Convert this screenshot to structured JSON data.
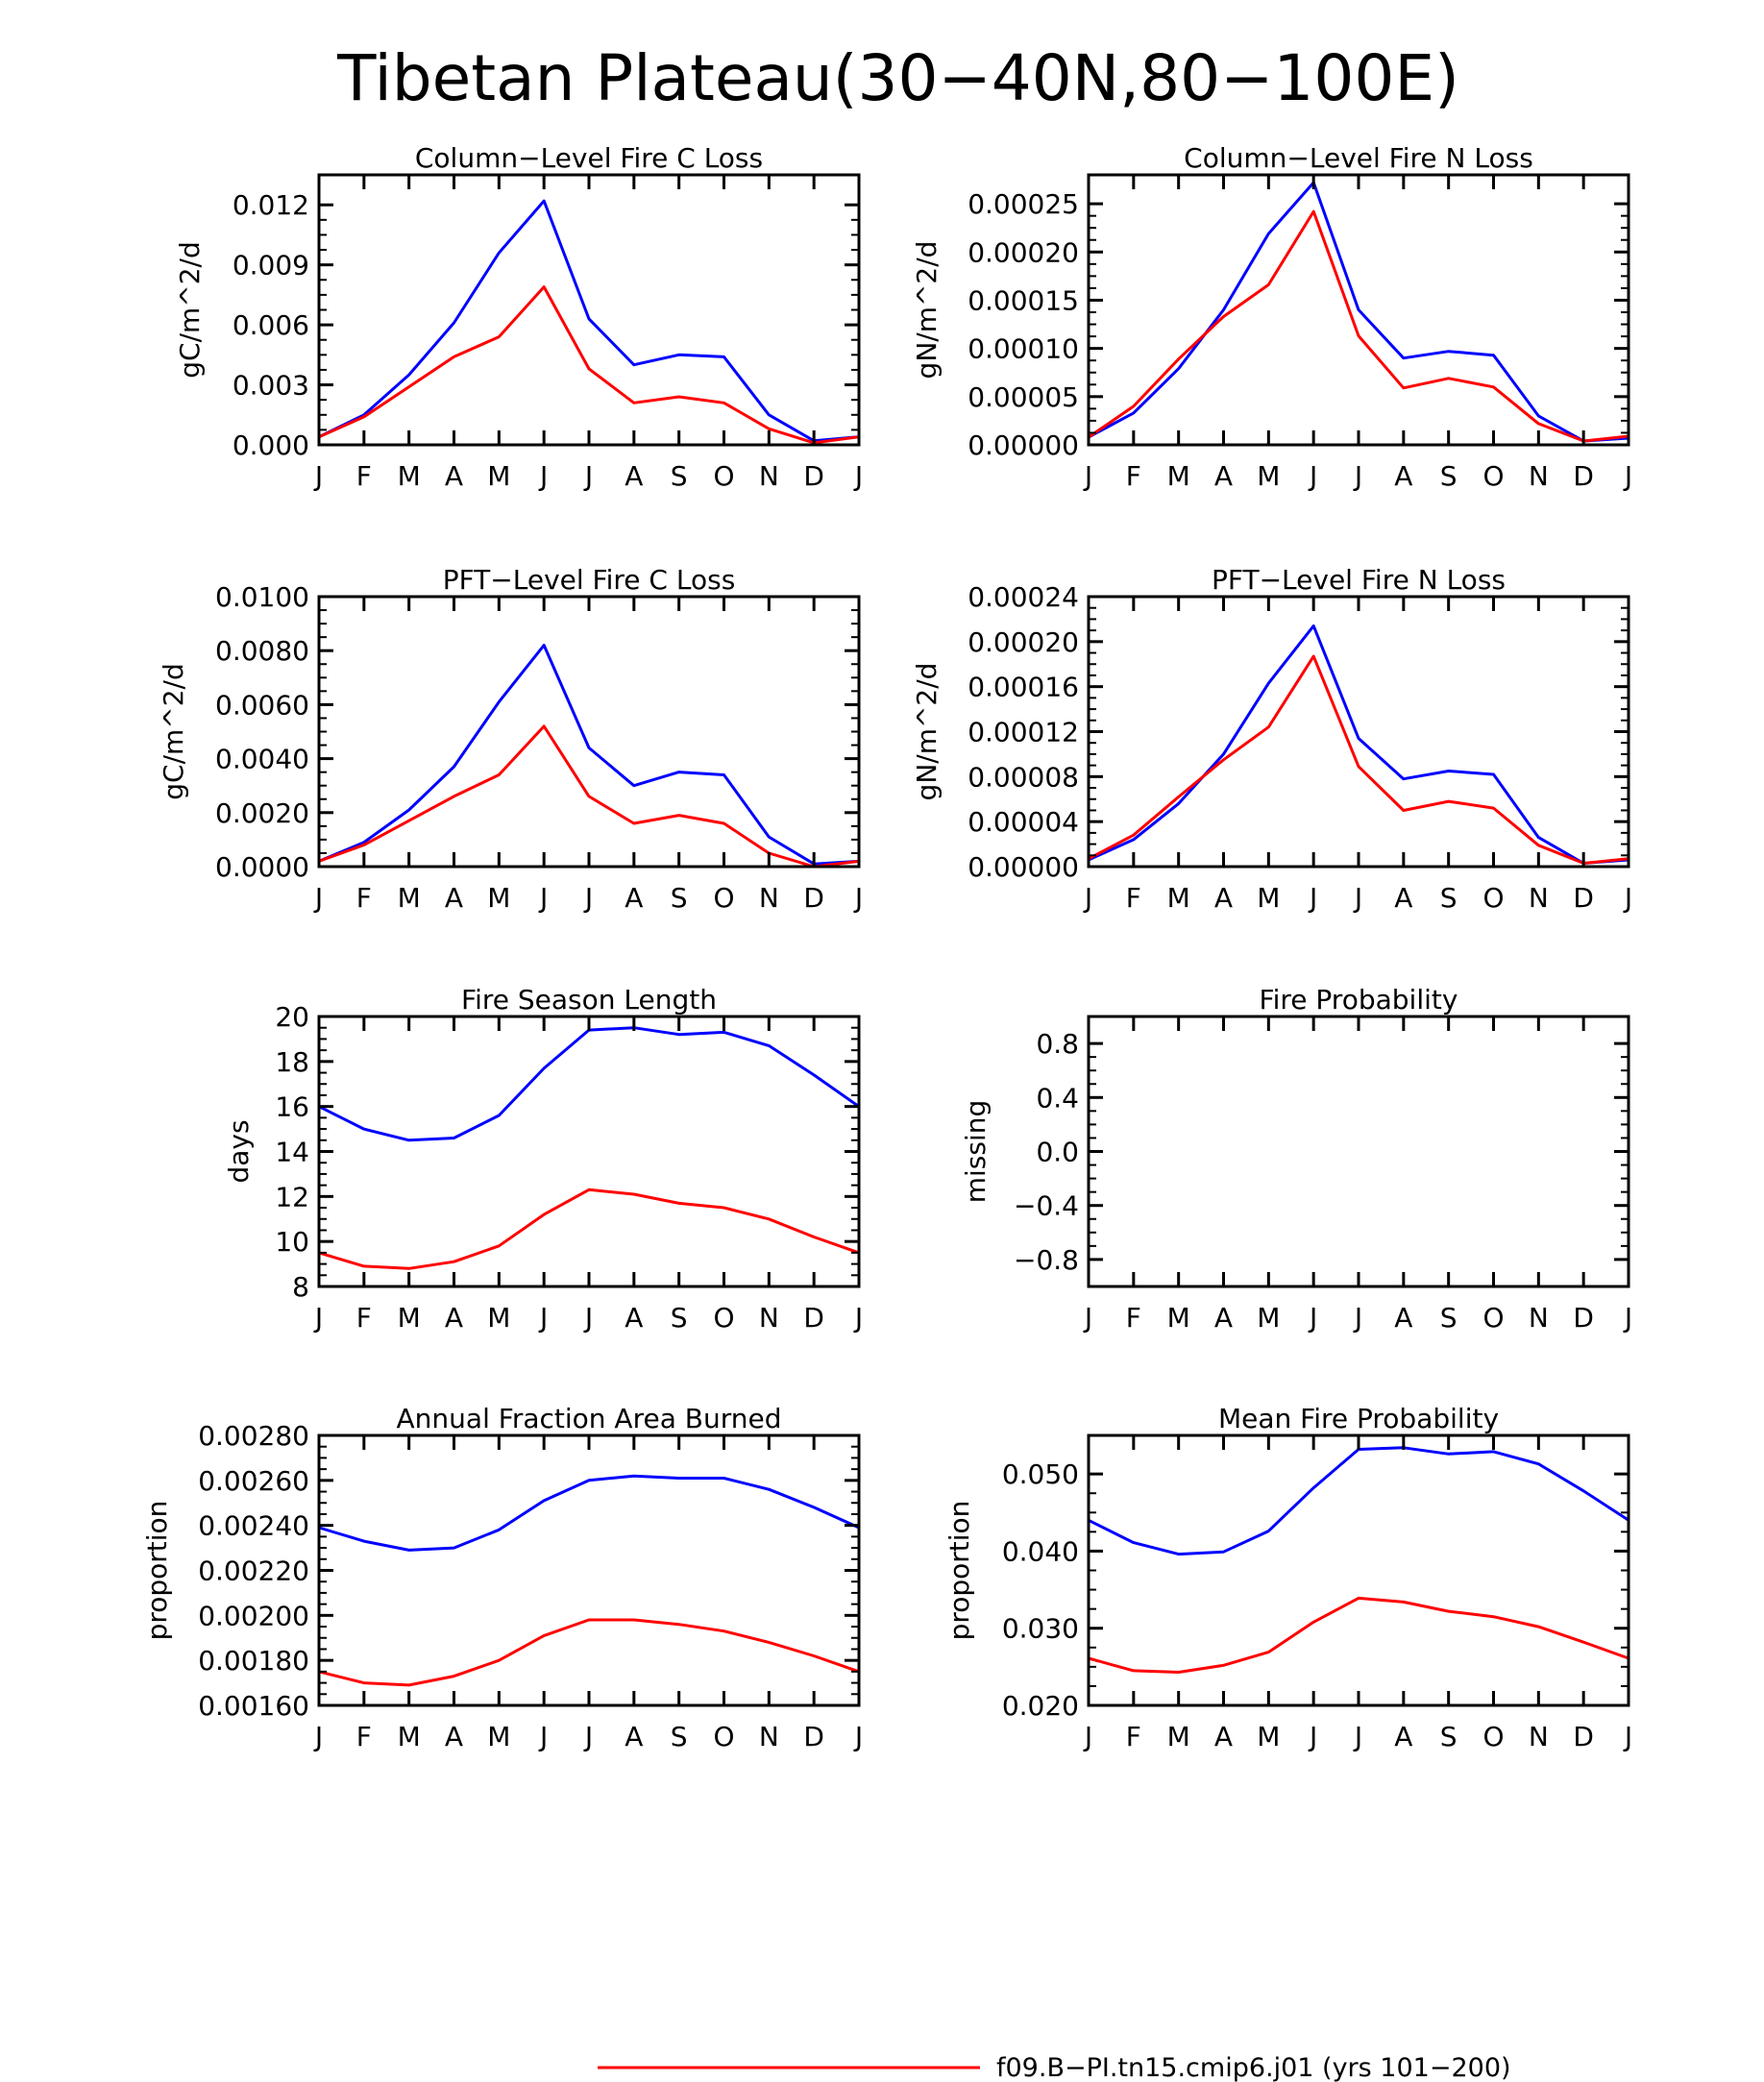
{
  "figure_title": "Tibetan Plateau(30−40N,80−100E)",
  "legend": {
    "red_label": "f09.B−PI.tn15.cmip6.j01 (yrs 101−200)"
  },
  "colors": {
    "series_a": "#ff0000",
    "series_b": "#0000ff",
    "axis": "#000000"
  },
  "chart_data": [
    {
      "type": "line",
      "title": "Column−Level Fire C Loss",
      "ylabel": "gC/m^2/d",
      "categories": [
        "J",
        "F",
        "M",
        "A",
        "M",
        "J",
        "J",
        "A",
        "S",
        "O",
        "N",
        "D",
        "J"
      ],
      "ylim": [
        0,
        0.0135
      ],
      "yticks": [
        "0.000",
        "0.003",
        "0.006",
        "0.009",
        "0.012"
      ],
      "ytick_values": [
        0,
        0.003,
        0.006,
        0.009,
        0.012
      ],
      "series": [
        {
          "color": "#0000ff",
          "values": [
            0.0004,
            0.0015,
            0.0035,
            0.0061,
            0.0096,
            0.0122,
            0.0063,
            0.004,
            0.0045,
            0.0044,
            0.0015,
            0.0002,
            0.0004
          ]
        },
        {
          "color": "#ff0000",
          "values": [
            0.0004,
            0.0014,
            0.0029,
            0.0044,
            0.0054,
            0.0079,
            0.0038,
            0.0021,
            0.0024,
            0.0021,
            0.0008,
            0.0001,
            0.0004
          ]
        }
      ]
    },
    {
      "type": "line",
      "title": "Column−Level Fire N Loss",
      "ylabel": "gN/m^2/d",
      "categories": [
        "J",
        "F",
        "M",
        "A",
        "M",
        "J",
        "J",
        "A",
        "S",
        "O",
        "N",
        "D",
        "J"
      ],
      "ylim": [
        0,
        0.00028
      ],
      "yticks": [
        "0.00000",
        "0.00005",
        "0.00010",
        "0.00015",
        "0.00020",
        "0.00025"
      ],
      "ytick_values": [
        0,
        5e-05,
        0.0001,
        0.00015,
        0.0002,
        0.00025
      ],
      "series": [
        {
          "color": "#0000ff",
          "values": [
            8e-06,
            3.3e-05,
            7.9e-05,
            0.00014,
            0.000219,
            0.000272,
            0.00014,
            9e-05,
            9.7e-05,
            9.3e-05,
            3e-05,
            4e-06,
            7e-06
          ]
        },
        {
          "color": "#ff0000",
          "values": [
            8e-06,
            4e-05,
            8.9e-05,
            0.000133,
            0.000166,
            0.000242,
            0.000113,
            5.9e-05,
            6.9e-05,
            6e-05,
            2.2e-05,
            4e-06,
            9e-06
          ]
        }
      ]
    },
    {
      "type": "line",
      "title": "PFT−Level Fire C Loss",
      "ylabel": "gC/m^2/d",
      "categories": [
        "J",
        "F",
        "M",
        "A",
        "M",
        "J",
        "J",
        "A",
        "S",
        "O",
        "N",
        "D",
        "J"
      ],
      "ylim": [
        0,
        0.01
      ],
      "yticks": [
        "0.0000",
        "0.0020",
        "0.0040",
        "0.0060",
        "0.0080",
        "0.0100"
      ],
      "ytick_values": [
        0,
        0.002,
        0.004,
        0.006,
        0.008,
        0.01
      ],
      "series": [
        {
          "color": "#0000ff",
          "values": [
            0.0002,
            0.0009,
            0.0021,
            0.0037,
            0.0061,
            0.0082,
            0.0044,
            0.003,
            0.0035,
            0.0034,
            0.0011,
            0.0001,
            0.0002
          ]
        },
        {
          "color": "#ff0000",
          "values": [
            0.0002,
            0.0008,
            0.0017,
            0.0026,
            0.0034,
            0.0052,
            0.0026,
            0.0016,
            0.0019,
            0.0016,
            0.0005,
            0.0,
            0.0002
          ]
        }
      ]
    },
    {
      "type": "line",
      "title": "PFT−Level Fire N Loss",
      "ylabel": "gN/m^2/d",
      "categories": [
        "J",
        "F",
        "M",
        "A",
        "M",
        "J",
        "J",
        "A",
        "S",
        "O",
        "N",
        "D",
        "J"
      ],
      "ylim": [
        0,
        0.00024
      ],
      "yticks": [
        "0.00000",
        "0.00004",
        "0.00008",
        "0.00012",
        "0.00016",
        "0.00020",
        "0.00024"
      ],
      "ytick_values": [
        0,
        4e-05,
        8e-05,
        0.00012,
        0.00016,
        0.0002,
        0.00024
      ],
      "series": [
        {
          "color": "#0000ff",
          "values": [
            6e-06,
            2.4e-05,
            5.6e-05,
            0.0001,
            0.000163,
            0.000214,
            0.000114,
            7.8e-05,
            8.5e-05,
            8.2e-05,
            2.6e-05,
            3e-06,
            6e-06
          ]
        },
        {
          "color": "#ff0000",
          "values": [
            7e-06,
            2.8e-05,
            6.2e-05,
            9.5e-05,
            0.000124,
            0.000187,
            8.9e-05,
            5e-05,
            5.8e-05,
            5.2e-05,
            1.9e-05,
            3e-06,
            7e-06
          ]
        }
      ]
    },
    {
      "type": "line",
      "title": "Fire Season Length",
      "ylabel": "days",
      "categories": [
        "J",
        "F",
        "M",
        "A",
        "M",
        "J",
        "J",
        "A",
        "S",
        "O",
        "N",
        "D",
        "J"
      ],
      "ylim": [
        8,
        20
      ],
      "yticks": [
        "8",
        "10",
        "12",
        "14",
        "16",
        "18",
        "20"
      ],
      "ytick_values": [
        8,
        10,
        12,
        14,
        16,
        18,
        20
      ],
      "series": [
        {
          "color": "#0000ff",
          "values": [
            16.0,
            15.0,
            14.5,
            14.6,
            15.6,
            17.7,
            19.4,
            19.5,
            19.2,
            19.3,
            18.7,
            17.4,
            16.0
          ]
        },
        {
          "color": "#ff0000",
          "values": [
            9.5,
            8.9,
            8.8,
            9.1,
            9.8,
            11.2,
            12.3,
            12.1,
            11.7,
            11.5,
            11.0,
            10.2,
            9.5
          ]
        }
      ]
    },
    {
      "type": "line",
      "title": "Fire Probability",
      "ylabel": "missing",
      "categories": [
        "J",
        "F",
        "M",
        "A",
        "M",
        "J",
        "J",
        "A",
        "S",
        "O",
        "N",
        "D",
        "J"
      ],
      "ylim": [
        -1.0,
        1.0
      ],
      "yticks": [
        "−0.8",
        "−0.4",
        "0.0",
        "0.4",
        "0.8"
      ],
      "ytick_values": [
        -0.8,
        -0.4,
        0,
        0.4,
        0.8
      ],
      "series": []
    },
    {
      "type": "line",
      "title": "Annual Fraction Area Burned",
      "ylabel": "proportion",
      "categories": [
        "J",
        "F",
        "M",
        "A",
        "M",
        "J",
        "J",
        "A",
        "S",
        "O",
        "N",
        "D",
        "J"
      ],
      "ylim": [
        0.0016,
        0.0028
      ],
      "yticks": [
        "0.00160",
        "0.00180",
        "0.00200",
        "0.00220",
        "0.00240",
        "0.00260",
        "0.00280"
      ],
      "ytick_values": [
        0.0016,
        0.0018,
        0.002,
        0.0022,
        0.0024,
        0.0026,
        0.0028
      ],
      "series": [
        {
          "color": "#0000ff",
          "values": [
            0.00239,
            0.00233,
            0.00229,
            0.0023,
            0.00238,
            0.00251,
            0.0026,
            0.00262,
            0.00261,
            0.00261,
            0.00256,
            0.00248,
            0.00239
          ]
        },
        {
          "color": "#ff0000",
          "values": [
            0.00175,
            0.0017,
            0.00169,
            0.00173,
            0.0018,
            0.00191,
            0.00198,
            0.00198,
            0.00196,
            0.00193,
            0.00188,
            0.00182,
            0.00175
          ]
        }
      ]
    },
    {
      "type": "line",
      "title": "Mean Fire Probability",
      "ylabel": "proportion",
      "categories": [
        "J",
        "F",
        "M",
        "A",
        "M",
        "J",
        "J",
        "A",
        "S",
        "O",
        "N",
        "D",
        "J"
      ],
      "ylim": [
        0.02,
        0.055
      ],
      "yticks": [
        "0.020",
        "0.030",
        "0.040",
        "0.050"
      ],
      "ytick_values": [
        0.02,
        0.03,
        0.04,
        0.05
      ],
      "series": [
        {
          "color": "#0000ff",
          "values": [
            0.044,
            0.0411,
            0.0396,
            0.0399,
            0.0426,
            0.0482,
            0.0532,
            0.0534,
            0.0526,
            0.0529,
            0.0513,
            0.0478,
            0.044
          ]
        },
        {
          "color": "#ff0000",
          "values": [
            0.0261,
            0.0245,
            0.0243,
            0.0252,
            0.0269,
            0.0308,
            0.0339,
            0.0334,
            0.0322,
            0.0315,
            0.0302,
            0.0282,
            0.0261
          ]
        }
      ]
    }
  ]
}
